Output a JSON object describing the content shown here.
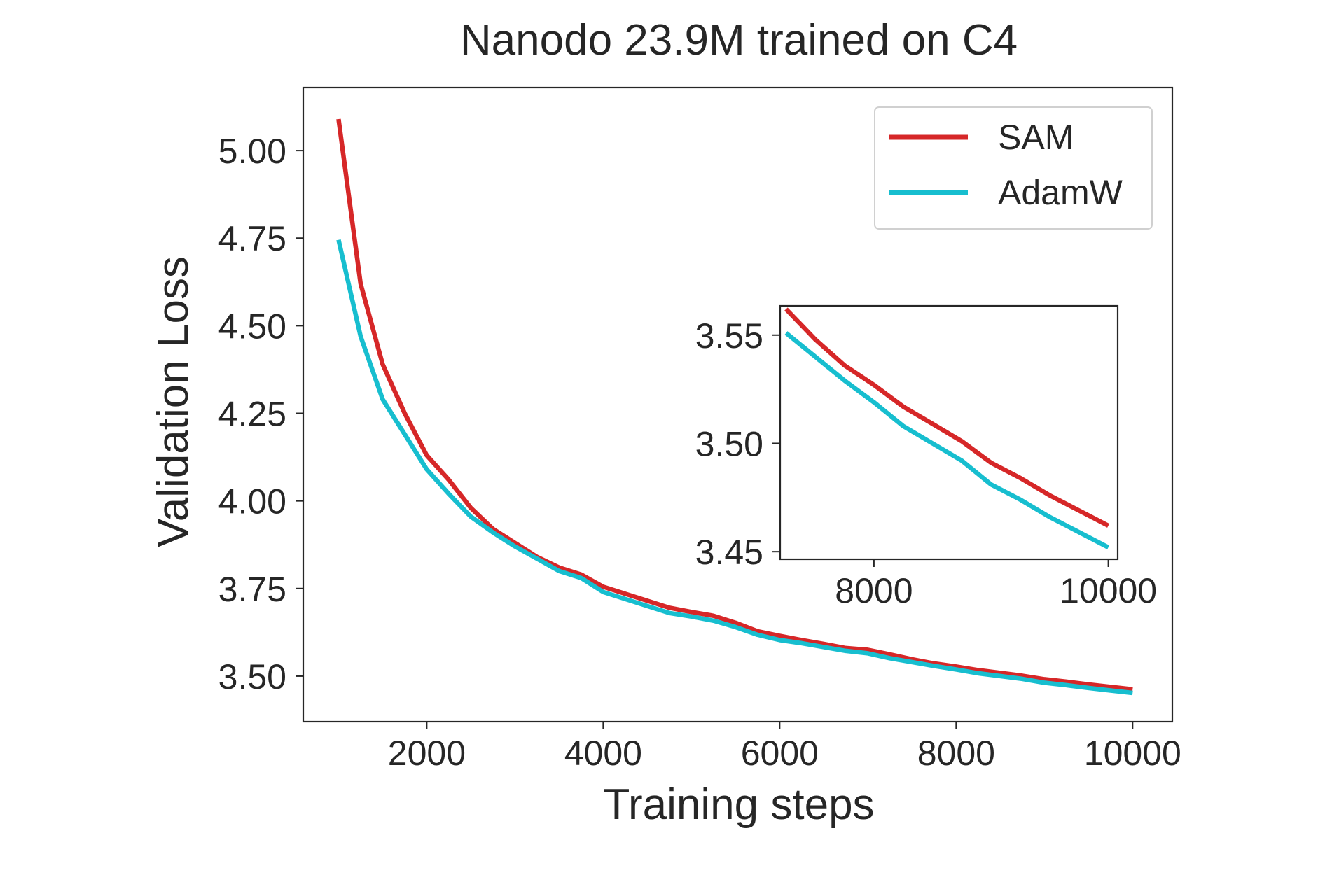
{
  "chart_data": {
    "type": "line",
    "title": "Nanodo 23.9M trained on C4",
    "xlabel": "Training steps",
    "ylabel": "Validation Loss",
    "xlim": [
      600,
      10450
    ],
    "ylim": [
      3.37,
      5.18
    ],
    "xticks": [
      2000,
      4000,
      6000,
      8000,
      10000
    ],
    "yticks": [
      3.5,
      3.75,
      4.0,
      4.25,
      4.5,
      4.75,
      5.0
    ],
    "ytick_labels": [
      "3.50",
      "3.75",
      "4.00",
      "4.25",
      "4.50",
      "4.75",
      "5.00"
    ],
    "grid": false,
    "legend_position": "top-right",
    "series": [
      {
        "name": "SAM",
        "color": "#d62728",
        "x": [
          1000,
          1250,
          1500,
          1750,
          2000,
          2250,
          2500,
          2750,
          3000,
          3250,
          3500,
          3750,
          4000,
          4250,
          4500,
          4750,
          5000,
          5250,
          5500,
          5750,
          6000,
          6250,
          6500,
          6750,
          7000,
          7250,
          7500,
          7750,
          8000,
          8250,
          8500,
          8750,
          9000,
          9250,
          9500,
          9750,
          10000
        ],
        "y": [
          5.09,
          4.62,
          4.39,
          4.25,
          4.13,
          4.06,
          3.98,
          3.92,
          3.88,
          3.84,
          3.81,
          3.79,
          3.755,
          3.735,
          3.715,
          3.695,
          3.683,
          3.672,
          3.652,
          3.628,
          3.615,
          3.603,
          3.592,
          3.58,
          3.575,
          3.562,
          3.548,
          3.536,
          3.527,
          3.517,
          3.509,
          3.501,
          3.491,
          3.484,
          3.476,
          3.469,
          3.462
        ]
      },
      {
        "name": "AdamW",
        "color": "#17becf",
        "x": [
          1000,
          1250,
          1500,
          1750,
          2000,
          2250,
          2500,
          2750,
          3000,
          3250,
          3500,
          3750,
          4000,
          4250,
          4500,
          4750,
          5000,
          5250,
          5500,
          5750,
          6000,
          6250,
          6500,
          6750,
          7000,
          7250,
          7500,
          7750,
          8000,
          8250,
          8500,
          8750,
          9000,
          9250,
          9500,
          9750,
          10000
        ],
        "y": [
          4.745,
          4.47,
          4.29,
          4.19,
          4.09,
          4.02,
          3.955,
          3.91,
          3.87,
          3.835,
          3.8,
          3.78,
          3.74,
          3.72,
          3.7,
          3.68,
          3.67,
          3.658,
          3.64,
          3.618,
          3.603,
          3.594,
          3.583,
          3.572,
          3.565,
          3.551,
          3.54,
          3.529,
          3.519,
          3.508,
          3.5,
          3.492,
          3.481,
          3.474,
          3.466,
          3.459,
          3.452
        ]
      }
    ],
    "inset": {
      "xlim": [
        7200,
        10080
      ],
      "ylim": [
        3.4465,
        3.5635
      ],
      "xticks": [
        8000,
        10000
      ],
      "yticks": [
        3.45,
        3.5,
        3.55
      ],
      "ytick_labels": [
        "3.45",
        "3.50",
        "3.55"
      ],
      "x_from": 7250
    }
  }
}
